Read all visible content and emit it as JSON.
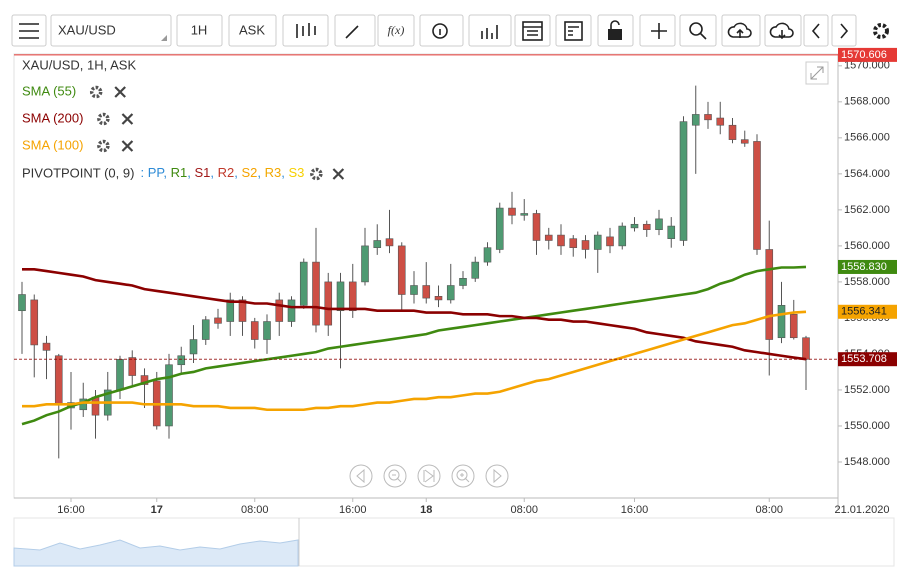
{
  "toolbar": {
    "symbol": "XAU/USD",
    "interval": "1H",
    "price_side": "ASK",
    "function_button": "f(x)"
  },
  "chart_data": {
    "type": "candlestick",
    "legend": {
      "title": "XAU/USD, 1H, ASK",
      "pivot_name": "PIVOTPOINT (0, 9)",
      "pivot_levels": [
        {
          "name": "PP",
          "color": "#2e8bd6"
        },
        {
          "name": "R1",
          "color": "#3f8a10"
        },
        {
          "name": "S1",
          "color": "#a01818"
        },
        {
          "name": "R2",
          "color": "#c0392b"
        },
        {
          "name": "S2",
          "color": "#f5a300"
        },
        {
          "name": "R3",
          "color": "#f2a800"
        },
        {
          "name": "S3",
          "color": "#f7d000"
        }
      ]
    },
    "categories": [
      null,
      null,
      null,
      null,
      "16:00",
      null,
      null,
      null,
      null,
      null,
      null,
      "17",
      null,
      null,
      null,
      null,
      null,
      null,
      null,
      "08:00",
      null,
      null,
      null,
      null,
      null,
      null,
      null,
      "16:00",
      null,
      null,
      null,
      null,
      null,
      "18",
      null,
      null,
      null,
      null,
      null,
      null,
      null,
      "08:00",
      null,
      null,
      null,
      null,
      null,
      null,
      null,
      null,
      "16:00",
      null,
      null,
      null,
      null,
      null,
      null,
      null,
      null,
      null,
      null,
      "08:00",
      null,
      null,
      null
    ],
    "x_end_label": "21.01.2020",
    "up_color": "#4f9a72",
    "down_color": "#cd4f45",
    "open": [
      1556.4,
      1557.0,
      1554.6,
      1553.9,
      1551.0,
      1550.9,
      1551.6,
      1550.6,
      1552.0,
      1553.8,
      1552.8,
      1552.5,
      1550.0,
      1553.4,
      1554.0,
      1554.8,
      1556.0,
      1555.8,
      1557.0,
      1555.8,
      1554.8,
      1557.0,
      1555.8,
      1556.7,
      1559.1,
      1558.0,
      1556.4,
      1558.0,
      1558.0,
      1559.9,
      1560.4,
      1560.0,
      1557.3,
      1557.8,
      1557.2,
      1557.0,
      1557.8,
      1558.2,
      1559.1,
      1559.8,
      1562.1,
      1561.7,
      1561.8,
      1560.6,
      1560.6,
      1560.4,
      1560.3,
      1559.8,
      1560.5,
      1560.0,
      1561.0,
      1561.2,
      1560.9,
      1560.4,
      1560.3,
      1566.7,
      1567.3,
      1567.1,
      1566.7,
      1565.9,
      1565.8,
      1559.8,
      1554.9,
      1556.2,
      1554.9
    ],
    "high": [
      1558.0,
      1557.3,
      1555.0,
      1554.0,
      1553.0,
      1552.4,
      1552.0,
      1553.0,
      1553.9,
      1554.2,
      1553.2,
      1553.0,
      1554.0,
      1554.4,
      1555.6,
      1556.1,
      1556.5,
      1557.4,
      1557.2,
      1556.0,
      1556.2,
      1557.4,
      1557.2,
      1559.3,
      1561.0,
      1558.5,
      1558.5,
      1559.0,
      1561.0,
      1561.2,
      1562.0,
      1560.2,
      1558.6,
      1559.1,
      1557.8,
      1559.0,
      1558.6,
      1559.4,
      1560.2,
      1562.4,
      1563.0,
      1562.6,
      1562.0,
      1561.0,
      1561.2,
      1560.6,
      1560.6,
      1560.8,
      1561.0,
      1561.3,
      1561.6,
      1561.4,
      1562.0,
      1561.6,
      1567.2,
      1568.9,
      1568.0,
      1568.0,
      1567.1,
      1566.4,
      1566.2,
      1561.4,
      1558.0,
      1557.0,
      1555.0
    ],
    "low": [
      1554.0,
      1552.7,
      1552.6,
      1548.2,
      1549.8,
      1550.5,
      1549.3,
      1550.3,
      1551.5,
      1552.2,
      1551.0,
      1549.8,
      1549.3,
      1552.9,
      1553.5,
      1554.5,
      1555.4,
      1555.0,
      1555.0,
      1554.3,
      1554.0,
      1555.0,
      1555.5,
      1556.5,
      1555.2,
      1555.0,
      1553.2,
      1556.0,
      1557.8,
      1559.5,
      1559.6,
      1556.4,
      1556.8,
      1556.8,
      1556.6,
      1556.8,
      1557.6,
      1558.0,
      1558.9,
      1559.6,
      1561.2,
      1561.4,
      1559.5,
      1559.8,
      1559.5,
      1559.4,
      1559.3,
      1558.5,
      1559.6,
      1559.8,
      1560.8,
      1560.5,
      1560.6,
      1559.9,
      1560.0,
      1564.0,
      1566.5,
      1566.2,
      1565.7,
      1565.5,
      1559.5,
      1552.8,
      1554.6,
      1554.8,
      1552.0
    ],
    "close": [
      1557.3,
      1554.5,
      1554.2,
      1551.2,
      1551.3,
      1551.5,
      1550.6,
      1552.0,
      1553.7,
      1552.8,
      1552.3,
      1550.0,
      1553.4,
      1553.9,
      1554.8,
      1555.9,
      1555.7,
      1557.0,
      1555.8,
      1554.8,
      1555.8,
      1555.8,
      1557.0,
      1559.1,
      1555.6,
      1555.6,
      1558.0,
      1556.4,
      1560.0,
      1560.3,
      1560.0,
      1557.3,
      1557.8,
      1557.1,
      1557.0,
      1557.8,
      1558.2,
      1559.1,
      1559.9,
      1562.1,
      1561.7,
      1561.8,
      1560.3,
      1560.3,
      1560.0,
      1559.9,
      1559.8,
      1560.6,
      1560.0,
      1561.1,
      1561.2,
      1560.9,
      1561.5,
      1561.1,
      1566.9,
      1567.3,
      1567.0,
      1566.7,
      1565.9,
      1565.7,
      1559.8,
      1554.8,
      1556.7,
      1554.9,
      1553.7
    ],
    "series": [
      {
        "name": "SMA (55)",
        "color": "#3f8a10",
        "values": [
          1550.1,
          1550.3,
          1550.6,
          1550.8,
          1551.1,
          1551.3,
          1551.6,
          1551.8,
          1552.0,
          1552.2,
          1552.4,
          1552.6,
          1552.7,
          1552.9,
          1553.0,
          1553.2,
          1553.3,
          1553.4,
          1553.5,
          1553.6,
          1553.7,
          1553.8,
          1553.9,
          1554.0,
          1554.1,
          1554.3,
          1554.4,
          1554.5,
          1554.6,
          1554.7,
          1554.8,
          1554.9,
          1555.0,
          1555.1,
          1555.3,
          1555.4,
          1555.5,
          1555.6,
          1555.7,
          1555.8,
          1555.9,
          1556.0,
          1556.1,
          1556.2,
          1556.3,
          1556.4,
          1556.5,
          1556.6,
          1556.7,
          1556.8,
          1556.9,
          1557.0,
          1557.1,
          1557.2,
          1557.3,
          1557.4,
          1557.6,
          1557.9,
          1558.1,
          1558.4,
          1558.6,
          1558.7,
          1558.8,
          1558.8,
          1558.83
        ]
      },
      {
        "name": "SMA (200)",
        "color": "#8b0000",
        "values": [
          1558.7,
          1558.7,
          1558.6,
          1558.5,
          1558.4,
          1558.3,
          1558.1,
          1558.0,
          1557.9,
          1557.8,
          1557.6,
          1557.5,
          1557.4,
          1557.3,
          1557.2,
          1557.1,
          1557.0,
          1556.9,
          1556.9,
          1556.8,
          1556.8,
          1556.7,
          1556.6,
          1556.6,
          1556.6,
          1556.5,
          1556.5,
          1556.5,
          1556.5,
          1556.4,
          1556.4,
          1556.4,
          1556.4,
          1556.3,
          1556.3,
          1556.3,
          1556.2,
          1556.2,
          1556.2,
          1556.1,
          1556.1,
          1556.0,
          1556.0,
          1555.9,
          1555.9,
          1555.8,
          1555.8,
          1555.7,
          1555.6,
          1555.5,
          1555.4,
          1555.2,
          1555.1,
          1555.0,
          1554.9,
          1554.7,
          1554.6,
          1554.5,
          1554.4,
          1554.2,
          1554.1,
          1554.0,
          1553.9,
          1553.8,
          1553.708
        ]
      },
      {
        "name": "SMA (100)",
        "color": "#f5a300",
        "values": [
          1551.1,
          1551.1,
          1551.2,
          1551.2,
          1551.2,
          1551.3,
          1551.3,
          1551.3,
          1551.3,
          1551.3,
          1551.2,
          1551.2,
          1551.2,
          1551.2,
          1551.1,
          1551.1,
          1551.1,
          1551.0,
          1551.0,
          1551.0,
          1550.9,
          1550.9,
          1550.9,
          1550.9,
          1551.0,
          1551.0,
          1551.1,
          1551.1,
          1551.2,
          1551.3,
          1551.3,
          1551.4,
          1551.5,
          1551.5,
          1551.6,
          1551.6,
          1551.7,
          1551.8,
          1551.8,
          1551.9,
          1552.1,
          1552.3,
          1552.5,
          1552.6,
          1552.8,
          1553.0,
          1553.2,
          1553.4,
          1553.6,
          1553.8,
          1554.0,
          1554.2,
          1554.4,
          1554.6,
          1554.8,
          1555.0,
          1555.2,
          1555.4,
          1555.6,
          1555.7,
          1555.9,
          1556.1,
          1556.2,
          1556.3,
          1556.341
        ]
      }
    ],
    "price_tags": [
      {
        "value": 1570.606,
        "color": "#e53935"
      },
      {
        "value": 1558.83,
        "label": "1558.830",
        "color": "#3f8a10"
      },
      {
        "value": 1556.341,
        "color": "#f5a300"
      },
      {
        "value": 1553.708,
        "color": "#8b0000"
      }
    ],
    "ylim": [
      1546,
      1570.6
    ],
    "yticks": [
      {
        "value": 1548,
        "label": "1548.000"
      },
      {
        "value": 1550,
        "label": "1550.000"
      },
      {
        "value": 1552,
        "label": "1552.000"
      },
      {
        "value": 1554,
        "label": "1554.000"
      },
      {
        "value": 1556,
        "label": "1556.000"
      },
      {
        "value": 1558,
        "label": "1558.000"
      },
      {
        "value": 1560,
        "label": "1560.000"
      },
      {
        "value": 1562,
        "label": "1562.000"
      },
      {
        "value": 1564,
        "label": "1564.000"
      },
      {
        "value": 1566,
        "label": "1566.000"
      },
      {
        "value": 1568,
        "label": "1568.000"
      },
      {
        "value": 1570,
        "label": "1570.000"
      }
    ]
  }
}
